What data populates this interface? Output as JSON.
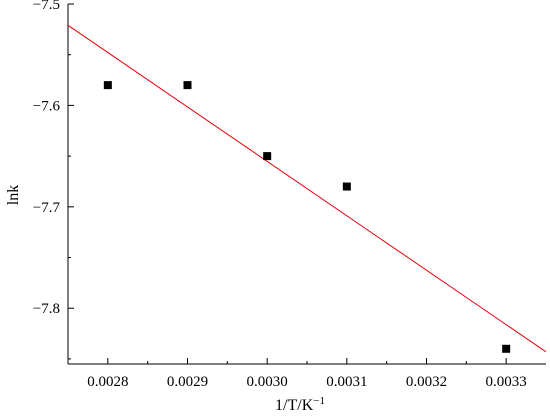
{
  "chart_data": {
    "type": "scatter",
    "title": "",
    "xlabel": "1/T/K",
    "xlabel_sup": "−1",
    "ylabel": "lnk",
    "xlim": [
      0.00275,
      0.00335
    ],
    "ylim": [
      -7.855,
      -7.5
    ],
    "x_ticks": [
      {
        "value": 0.0028,
        "label": "0.0028"
      },
      {
        "value": 0.0029,
        "label": "0.0029"
      },
      {
        "value": 0.003,
        "label": "0.0030"
      },
      {
        "value": 0.0031,
        "label": "0.0031"
      },
      {
        "value": 0.0032,
        "label": "0.0032"
      },
      {
        "value": 0.0033,
        "label": "0.0033"
      }
    ],
    "y_ticks": [
      {
        "value": -7.5,
        "label": "−7.5"
      },
      {
        "value": -7.6,
        "label": "−7.6"
      },
      {
        "value": -7.7,
        "label": "−7.7"
      },
      {
        "value": -7.8,
        "label": "−7.8"
      }
    ],
    "series": [
      {
        "kind": "points",
        "marker": "square",
        "color": "#000000",
        "x": [
          0.0028,
          0.0029,
          0.003,
          0.0031,
          0.0033
        ],
        "y": [
          -7.58,
          -7.58,
          -7.65,
          -7.68,
          -7.84
        ]
      },
      {
        "kind": "fit-line",
        "color": "#e8000b",
        "x": [
          0.00275,
          0.00335
        ],
        "y": [
          -7.521,
          -7.843
        ]
      }
    ],
    "grid": false,
    "legend": "none"
  }
}
